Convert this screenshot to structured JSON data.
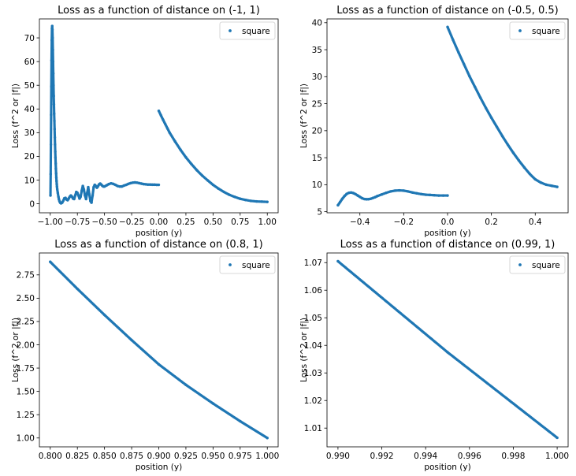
{
  "chart_data": [
    {
      "type": "scatter",
      "title": "Loss as a function of distance on (-1, 1)",
      "xlabel": "position (y)",
      "ylabel": "Loss (f^2 or |f|)",
      "xlim": [
        -1.1,
        1.1
      ],
      "ylim": [
        -3.8,
        78
      ],
      "xticks": [
        -1.0,
        -0.75,
        -0.5,
        -0.25,
        0.0,
        0.25,
        0.5,
        0.75,
        1.0
      ],
      "xtick_labels": [
        "−1.00",
        "−0.75",
        "−0.50",
        "−0.25",
        "0.00",
        "0.25",
        "0.50",
        "0.75",
        "1.00"
      ],
      "yticks": [
        0,
        10,
        20,
        30,
        40,
        50,
        60,
        70
      ],
      "ytick_labels": [
        "0",
        "10",
        "20",
        "30",
        "40",
        "50",
        "60",
        "70"
      ],
      "legend": "top-right",
      "color": "#1f77b4",
      "series": [
        {
          "name": "square",
          "x": [
            -0.998,
            -0.996,
            -0.994,
            -0.992,
            -0.99,
            -0.988,
            -0.986,
            -0.984,
            -0.982,
            -0.98,
            -0.978,
            -0.976,
            -0.974,
            -0.972,
            -0.97,
            -0.968,
            -0.966,
            -0.964,
            -0.962,
            -0.96,
            -0.958,
            -0.956,
            -0.954,
            -0.952,
            -0.95,
            -0.948,
            -0.946,
            -0.944,
            -0.942,
            -0.94,
            -0.938,
            -0.936,
            -0.93,
            -0.925,
            -0.92,
            -0.915,
            -0.91,
            -0.905,
            -0.9,
            -0.89,
            -0.88,
            -0.87,
            -0.86,
            -0.85,
            -0.84,
            -0.83,
            -0.82,
            -0.81,
            -0.8,
            -0.79,
            -0.78,
            -0.77,
            -0.76,
            -0.75,
            -0.74,
            -0.73,
            -0.72,
            -0.71,
            -0.7,
            -0.69,
            -0.68,
            -0.67,
            -0.66,
            -0.65,
            -0.64,
            -0.63,
            -0.62,
            -0.61,
            -0.6,
            -0.59,
            -0.58,
            -0.57,
            -0.56,
            -0.55,
            -0.54,
            -0.53,
            -0.52,
            -0.51,
            -0.5,
            -0.48,
            -0.46,
            -0.44,
            -0.42,
            -0.4,
            -0.38,
            -0.36,
            -0.34,
            -0.32,
            -0.3,
            -0.28,
            -0.26,
            -0.24,
            -0.22,
            -0.2,
            -0.18,
            -0.16,
            -0.14,
            -0.12,
            -0.1,
            -0.08,
            -0.06,
            -0.04,
            -0.02,
            0.0,
            0.0,
            0.02,
            0.04,
            0.06,
            0.08,
            0.1,
            0.15,
            0.2,
            0.25,
            0.3,
            0.35,
            0.4,
            0.45,
            0.5,
            0.55,
            0.6,
            0.65,
            0.7,
            0.75,
            0.8,
            0.85,
            0.9,
            0.95,
            1.0
          ],
          "y": [
            3.5,
            12.5,
            25,
            37.5,
            49.5,
            60.5,
            69,
            74,
            75,
            73.5,
            70,
            65,
            60,
            55,
            50,
            45.5,
            42,
            38,
            35,
            31.5,
            28,
            25,
            22,
            19.5,
            17,
            14.8,
            12.8,
            11,
            9.6,
            8.3,
            7.2,
            6.2,
            4.5,
            3.0,
            1.9,
            1.1,
            0.6,
            0.3,
            0.2,
            0.5,
            1.3,
            2.3,
            2.5,
            1.8,
            1.5,
            2.2,
            3.0,
            3.5,
            3.0,
            2.2,
            2.0,
            3.5,
            5.0,
            4.6,
            3.5,
            2.2,
            3.0,
            5.5,
            7.5,
            6.0,
            3.5,
            2.0,
            4.5,
            7.0,
            4.0,
            1.2,
            0.5,
            3.5,
            7.0,
            8.0,
            7.5,
            6.8,
            7.4,
            8.2,
            8.5,
            8.1,
            7.6,
            7.3,
            7.3,
            7.8,
            8.3,
            8.6,
            8.4,
            8.0,
            7.5,
            7.3,
            7.3,
            7.7,
            8.0,
            8.4,
            8.7,
            8.9,
            9.0,
            8.9,
            8.7,
            8.5,
            8.3,
            8.2,
            8.1,
            8.1,
            8.05,
            8.05,
            8.0,
            8.0,
            39.2,
            37.3,
            35.4,
            33.6,
            31.8,
            30.0,
            26.3,
            22.8,
            19.6,
            16.8,
            14.2,
            11.9,
            9.9,
            8.0,
            6.4,
            5.0,
            3.8,
            2.9,
            2.1,
            1.6,
            1.2,
            1.0,
            0.9,
            0.8
          ]
        }
      ]
    },
    {
      "type": "scatter",
      "title": "Loss as a function of distance on (-0.5, 0.5)",
      "xlabel": "position (y)",
      "ylabel": "Loss (f^2 or |f|)",
      "xlim": [
        -0.55,
        0.55
      ],
      "ylim": [
        4.8,
        40.7
      ],
      "xticks": [
        -0.4,
        -0.2,
        0.0,
        0.2,
        0.4
      ],
      "xtick_labels": [
        "−0.4",
        "−0.2",
        "0.0",
        "0.2",
        "0.4"
      ],
      "yticks": [
        5,
        10,
        15,
        20,
        25,
        30,
        35,
        40
      ],
      "ytick_labels": [
        "5",
        "10",
        "15",
        "20",
        "25",
        "30",
        "35",
        "40"
      ],
      "legend": "top-right",
      "color": "#1f77b4",
      "series": [
        {
          "name": "square",
          "x": [
            -0.5,
            -0.49,
            -0.48,
            -0.47,
            -0.46,
            -0.45,
            -0.44,
            -0.43,
            -0.42,
            -0.41,
            -0.4,
            -0.39,
            -0.38,
            -0.37,
            -0.36,
            -0.35,
            -0.34,
            -0.33,
            -0.32,
            -0.3,
            -0.28,
            -0.26,
            -0.24,
            -0.22,
            -0.2,
            -0.18,
            -0.16,
            -0.14,
            -0.12,
            -0.1,
            -0.08,
            -0.06,
            -0.04,
            -0.02,
            0.0,
            0.0,
            0.025,
            0.05,
            0.075,
            0.1,
            0.125,
            0.15,
            0.175,
            0.2,
            0.225,
            0.25,
            0.275,
            0.3,
            0.325,
            0.35,
            0.375,
            0.4,
            0.425,
            0.45,
            0.475,
            0.5
          ],
          "y": [
            6.2,
            6.8,
            7.4,
            7.9,
            8.3,
            8.5,
            8.55,
            8.45,
            8.25,
            8.0,
            7.75,
            7.5,
            7.35,
            7.3,
            7.32,
            7.4,
            7.55,
            7.7,
            7.9,
            8.2,
            8.5,
            8.75,
            8.9,
            8.95,
            8.9,
            8.75,
            8.55,
            8.4,
            8.25,
            8.15,
            8.1,
            8.05,
            8.0,
            8.0,
            8.0,
            39.2,
            36.8,
            34.5,
            32.3,
            30.1,
            28.1,
            26.1,
            24.2,
            22.4,
            20.7,
            19.0,
            17.4,
            15.9,
            14.5,
            13.2,
            12.0,
            11.0,
            10.4,
            10.0,
            9.8,
            9.6
          ]
        }
      ]
    },
    {
      "type": "scatter",
      "title": "Loss as a function of distance on (0.8, 1)",
      "xlabel": "position (y)",
      "ylabel": "Loss (f^2 or |f|)",
      "xlim": [
        0.79,
        1.01
      ],
      "ylim": [
        0.905,
        2.985
      ],
      "xticks": [
        0.8,
        0.825,
        0.85,
        0.875,
        0.9,
        0.925,
        0.95,
        0.975,
        1.0
      ],
      "xtick_labels": [
        "0.800",
        "0.825",
        "0.850",
        "0.875",
        "0.900",
        "0.925",
        "0.950",
        "0.975",
        "1.000"
      ],
      "yticks": [
        1.0,
        1.25,
        1.5,
        1.75,
        2.0,
        2.25,
        2.5,
        2.75
      ],
      "ytick_labels": [
        "1.00",
        "1.25",
        "1.50",
        "1.75",
        "2.00",
        "2.25",
        "2.50",
        "2.75"
      ],
      "legend": "top-right",
      "color": "#1f77b4",
      "series": [
        {
          "name": "square",
          "x": [
            0.8,
            0.825,
            0.85,
            0.875,
            0.9,
            0.925,
            0.95,
            0.975,
            1.0
          ],
          "y": [
            2.89,
            2.6,
            2.32,
            2.05,
            1.79,
            1.57,
            1.37,
            1.18,
            1.0
          ]
        }
      ]
    },
    {
      "type": "scatter",
      "title": "Loss as a function of distance on (0.99, 1)",
      "xlabel": "position (y)",
      "ylabel": "Loss (f^2 or |f|)",
      "xlim": [
        0.9895,
        1.0005
      ],
      "ylim": [
        1.0032,
        1.0735
      ],
      "xticks": [
        0.99,
        0.992,
        0.994,
        0.996,
        0.998,
        1.0
      ],
      "xtick_labels": [
        "0.990",
        "0.992",
        "0.994",
        "0.996",
        "0.998",
        "1.000"
      ],
      "yticks": [
        1.01,
        1.02,
        1.03,
        1.04,
        1.05,
        1.06,
        1.07
      ],
      "ytick_labels": [
        "1.01",
        "1.02",
        "1.03",
        "1.04",
        "1.05",
        "1.06",
        "1.07"
      ],
      "legend": "top-right",
      "color": "#1f77b4",
      "series": [
        {
          "name": "square",
          "x": [
            0.99,
            0.995,
            1.0
          ],
          "y": [
            1.0705,
            1.0375,
            1.0065
          ]
        }
      ]
    }
  ]
}
